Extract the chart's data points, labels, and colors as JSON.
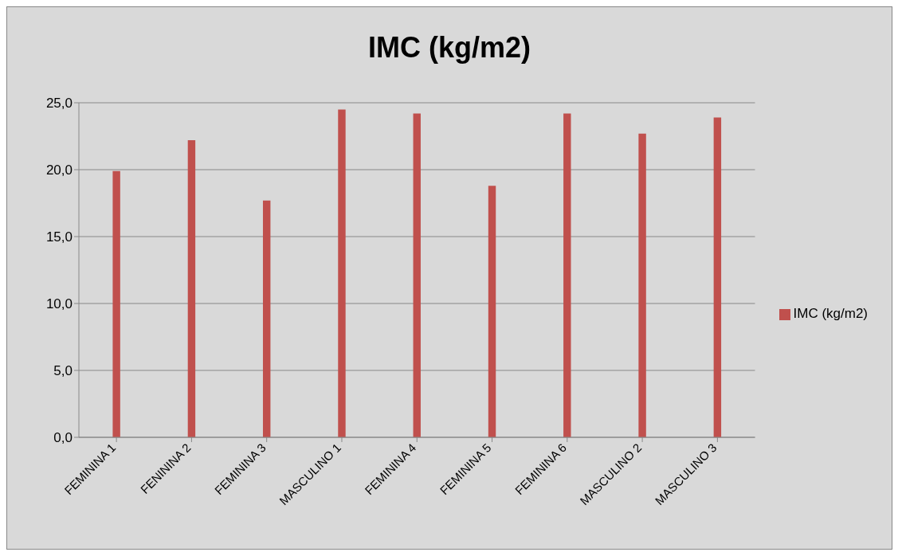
{
  "chart_data": {
    "type": "bar",
    "title": "IMC (kg/m2)",
    "categories": [
      "FEMININA 1",
      "FENININA 2",
      "FEMININA 3",
      "MASCULINO 1",
      "FEMININA 4",
      "FEMININA 5",
      "FEMININA 6",
      "MASCULINO 2",
      "MASCULINO 3"
    ],
    "series": [
      {
        "name": "IMC (kg/m2)",
        "color": "#c0504d",
        "values": [
          19.9,
          22.2,
          17.7,
          24.5,
          24.2,
          18.8,
          24.2,
          22.7,
          23.9
        ]
      }
    ],
    "ylim": [
      0,
      25
    ],
    "yticks": [
      {
        "value": 0,
        "label": "0,0"
      },
      {
        "value": 5,
        "label": "5,0"
      },
      {
        "value": 10,
        "label": "10,0"
      },
      {
        "value": 15,
        "label": "15,0"
      },
      {
        "value": 20,
        "label": "20,0"
      },
      {
        "value": 25,
        "label": "25,0"
      }
    ],
    "grid": "y",
    "legend": "right"
  }
}
